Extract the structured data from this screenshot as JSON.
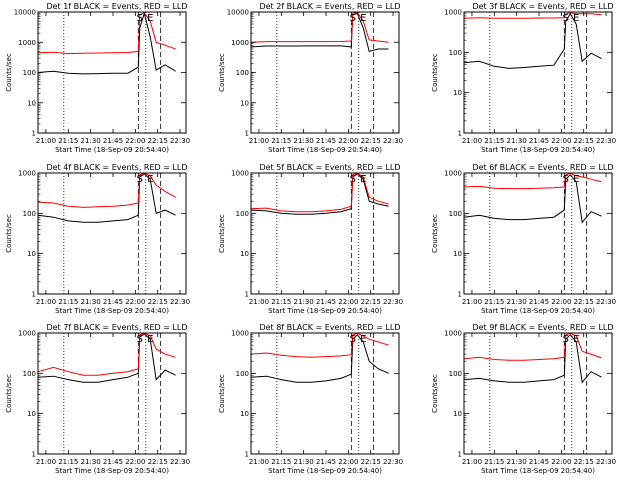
{
  "colors": {
    "events": "#000000",
    "lld": "#ff0000",
    "background": "#ffffff"
  },
  "chart_data": [
    {
      "type": "line",
      "title": "Det 1f BLACK = Events, RED = LLD",
      "xlabel": "Start Time (18-Sep-09 20:54:40)",
      "ylabel": "Counts/sec",
      "yscale": "log",
      "xlim": [
        "20:54:40",
        "22:34:00"
      ],
      "ylim": [
        1,
        10000
      ],
      "xticks": [
        "21:00",
        "21:15",
        "21:30",
        "21:45",
        "22:00",
        "22:15",
        "22:30"
      ],
      "yticks": [
        "1",
        "10",
        "100",
        "1000",
        "10000"
      ],
      "markers": {
        "S": "22:03",
        "E": "22:10"
      },
      "dotted_lines": [
        "21:12",
        "22:07"
      ],
      "dashed_lines": [
        "22:02",
        "22:17"
      ],
      "x": [
        "20:54:40",
        "21:05",
        "21:15",
        "21:25",
        "21:35",
        "21:45",
        "21:55",
        "22:02",
        "22:03",
        "22:06",
        "22:10",
        "22:14",
        "22:20",
        "22:27"
      ],
      "series": [
        {
          "name": "Events",
          "values": [
            100,
            110,
            95,
            90,
            92,
            95,
            95,
            150,
            3000,
            9000,
            1500,
            120,
            180,
            110
          ]
        },
        {
          "name": "LLD",
          "values": [
            450,
            470,
            420,
            430,
            440,
            450,
            460,
            500,
            8000,
            9500,
            5000,
            1000,
            800,
            600
          ]
        }
      ]
    },
    {
      "type": "line",
      "title": "Det 2f BLACK = Events, RED = LLD",
      "xlabel": "Start Time (18-Sep-09 20:54:40)",
      "ylabel": "Counts/sec",
      "yscale": "log",
      "xlim": [
        "20:54:40",
        "22:34:00"
      ],
      "ylim": [
        1,
        10000
      ],
      "xticks": [
        "21:00",
        "21:15",
        "21:30",
        "21:45",
        "22:00",
        "22:15",
        "22:30"
      ],
      "yticks": [
        "1",
        "10",
        "100",
        "1000",
        "10000"
      ],
      "markers": {
        "S": "22:03",
        "E": "22:10"
      },
      "dotted_lines": [
        "21:12",
        "22:07"
      ],
      "dashed_lines": [
        "22:02",
        "22:17"
      ],
      "x": [
        "20:54:40",
        "21:05",
        "21:15",
        "21:25",
        "21:35",
        "21:45",
        "21:55",
        "22:02",
        "22:03",
        "22:06",
        "22:10",
        "22:14",
        "22:20",
        "22:27"
      ],
      "series": [
        {
          "name": "Events",
          "values": [
            700,
            750,
            750,
            750,
            760,
            760,
            760,
            700,
            8000,
            9000,
            3000,
            500,
            600,
            600
          ]
        },
        {
          "name": "LLD",
          "values": [
            1000,
            1050,
            1050,
            1050,
            1050,
            1050,
            1060,
            1100,
            9000,
            9800,
            5000,
            1200,
            1100,
            1000
          ]
        }
      ]
    },
    {
      "type": "line",
      "title": "Det 3f BLACK = Events, RED = LLD",
      "xlabel": "Start Time (18-Sep-09 20:54:40)",
      "ylabel": "Counts/sec",
      "yscale": "log",
      "xlim": [
        "20:54:40",
        "22:34:00"
      ],
      "ylim": [
        1,
        1000
      ],
      "xticks": [
        "21:00",
        "21:15",
        "21:30",
        "21:45",
        "22:00",
        "22:15",
        "22:30"
      ],
      "yticks": [
        "1",
        "10",
        "100",
        "1000"
      ],
      "markers": {
        "S": "22:03",
        "E": "22:10"
      },
      "dotted_lines": [
        "21:12",
        "22:07"
      ],
      "dashed_lines": [
        "22:02",
        "22:17"
      ],
      "x": [
        "20:54:40",
        "21:05",
        "21:15",
        "21:25",
        "21:35",
        "21:45",
        "21:55",
        "22:02",
        "22:03",
        "22:06",
        "22:10",
        "22:14",
        "22:20",
        "22:27"
      ],
      "series": [
        {
          "name": "Events",
          "values": [
            55,
            60,
            45,
            40,
            42,
            45,
            48,
            120,
            600,
            900,
            500,
            60,
            95,
            70
          ]
        },
        {
          "name": "LLD",
          "values": [
            700,
            720,
            700,
            700,
            700,
            710,
            710,
            720,
            900,
            950,
            900,
            900,
            900,
            850
          ]
        }
      ]
    },
    {
      "type": "line",
      "title": "Det 4f BLACK = Events, RED = LLD",
      "xlabel": "Start Time (18-Sep-09 20:54:40)",
      "ylabel": "Counts/sec",
      "yscale": "log",
      "xlim": [
        "20:54:40",
        "22:34:00"
      ],
      "ylim": [
        1,
        1000
      ],
      "xticks": [
        "21:00",
        "21:15",
        "21:30",
        "21:45",
        "22:00",
        "22:15",
        "22:30"
      ],
      "yticks": [
        "1",
        "10",
        "100",
        "1000"
      ],
      "markers": {
        "S": "22:03",
        "E": "22:10"
      },
      "dotted_lines": [
        "21:12",
        "22:07"
      ],
      "dashed_lines": [
        "22:02",
        "22:17"
      ],
      "x": [
        "20:54:40",
        "21:05",
        "21:15",
        "21:25",
        "21:35",
        "21:45",
        "21:55",
        "22:02",
        "22:03",
        "22:06",
        "22:10",
        "22:14",
        "22:20",
        "22:27"
      ],
      "series": [
        {
          "name": "Events",
          "values": [
            90,
            80,
            65,
            60,
            60,
            65,
            70,
            90,
            800,
            950,
            700,
            100,
            120,
            90
          ]
        },
        {
          "name": "LLD",
          "values": [
            190,
            180,
            150,
            140,
            145,
            150,
            160,
            180,
            900,
            980,
            850,
            500,
            350,
            250
          ]
        }
      ]
    },
    {
      "type": "line",
      "title": "Det 5f BLACK = Events, RED = LLD",
      "xlabel": "Start Time (18-Sep-09 20:54:40)",
      "ylabel": "Counts/sec",
      "yscale": "log",
      "xlim": [
        "20:54:40",
        "22:34:00"
      ],
      "ylim": [
        1,
        1000
      ],
      "xticks": [
        "21:00",
        "21:15",
        "21:30",
        "21:45",
        "22:00",
        "22:15",
        "22:30"
      ],
      "yticks": [
        "1",
        "10",
        "100",
        "1000"
      ],
      "markers": {
        "S": "22:03",
        "E": "22:10"
      },
      "dotted_lines": [
        "21:12",
        "22:07"
      ],
      "dashed_lines": [
        "22:02",
        "22:17"
      ],
      "x": [
        "20:54:40",
        "21:05",
        "21:15",
        "21:25",
        "21:35",
        "21:45",
        "21:55",
        "22:02",
        "22:03",
        "22:06",
        "22:10",
        "22:14",
        "22:20",
        "22:27"
      ],
      "series": [
        {
          "name": "Events",
          "values": [
            120,
            115,
            100,
            95,
            95,
            100,
            110,
            130,
            800,
            950,
            700,
            200,
            170,
            150
          ]
        },
        {
          "name": "LLD",
          "values": [
            130,
            135,
            115,
            110,
            110,
            115,
            125,
            150,
            900,
            980,
            800,
            250,
            200,
            170
          ]
        }
      ]
    },
    {
      "type": "line",
      "title": "Det 6f BLACK = Events, RED = LLD",
      "xlabel": "Start Time (18-Sep-09 20:54:40)",
      "ylabel": "Counts/sec",
      "yscale": "log",
      "xlim": [
        "20:54:40",
        "22:34:00"
      ],
      "ylim": [
        1,
        1000
      ],
      "xticks": [
        "21:00",
        "21:15",
        "21:30",
        "21:45",
        "22:00",
        "22:15",
        "22:30"
      ],
      "yticks": [
        "1",
        "10",
        "100",
        "1000"
      ],
      "markers": {
        "S": "22:03",
        "E": "22:10"
      },
      "dotted_lines": [
        "21:12",
        "22:07"
      ],
      "dashed_lines": [
        "22:02",
        "22:17"
      ],
      "x": [
        "20:54:40",
        "21:05",
        "21:15",
        "21:25",
        "21:35",
        "21:45",
        "21:55",
        "22:02",
        "22:03",
        "22:06",
        "22:10",
        "22:14",
        "22:20",
        "22:27"
      ],
      "series": [
        {
          "name": "Events",
          "values": [
            80,
            90,
            75,
            70,
            70,
            75,
            80,
            120,
            700,
            900,
            600,
            60,
            110,
            85
          ]
        },
        {
          "name": "LLD",
          "values": [
            450,
            470,
            420,
            410,
            410,
            420,
            430,
            450,
            900,
            980,
            850,
            800,
            700,
            600
          ]
        }
      ]
    },
    {
      "type": "line",
      "title": "Det 7f BLACK = Events, RED = LLD",
      "xlabel": "Start Time (18-Sep-09 20:54:40)",
      "ylabel": "Counts/sec",
      "yscale": "log",
      "xlim": [
        "20:54:40",
        "22:34:00"
      ],
      "ylim": [
        1,
        1000
      ],
      "xticks": [
        "21:00",
        "21:15",
        "21:30",
        "21:45",
        "22:00",
        "22:15",
        "22:30"
      ],
      "yticks": [
        "1",
        "10",
        "100",
        "1000"
      ],
      "markers": {
        "S": "22:03",
        "E": "22:10"
      },
      "dotted_lines": [
        "21:12",
        "22:07"
      ],
      "dashed_lines": [
        "22:02",
        "22:17"
      ],
      "x": [
        "20:54:40",
        "21:05",
        "21:15",
        "21:25",
        "21:35",
        "21:45",
        "21:55",
        "22:02",
        "22:03",
        "22:06",
        "22:10",
        "22:14",
        "22:20",
        "22:27"
      ],
      "series": [
        {
          "name": "Events",
          "values": [
            80,
            85,
            70,
            60,
            60,
            70,
            80,
            100,
            800,
            950,
            700,
            70,
            120,
            90
          ]
        },
        {
          "name": "LLD",
          "values": [
            110,
            140,
            110,
            90,
            90,
            100,
            110,
            130,
            900,
            980,
            850,
            400,
            300,
            250
          ]
        }
      ]
    },
    {
      "type": "line",
      "title": "Det 8f BLACK = Events, RED = LLD",
      "xlabel": "Start Time (18-Sep-09 20:54:40)",
      "ylabel": "Counts/sec",
      "yscale": "log",
      "xlim": [
        "20:54:40",
        "22:34:00"
      ],
      "ylim": [
        1,
        1000
      ],
      "xticks": [
        "21:00",
        "21:15",
        "21:30",
        "21:45",
        "22:00",
        "22:15",
        "22:30"
      ],
      "yticks": [
        "1",
        "10",
        "100",
        "1000"
      ],
      "markers": {
        "S": "22:03",
        "E": "22:10"
      },
      "dotted_lines": [
        "21:12",
        "22:07"
      ],
      "dashed_lines": [
        "22:02",
        "22:17"
      ],
      "x": [
        "20:54:40",
        "21:05",
        "21:15",
        "21:25",
        "21:35",
        "21:45",
        "21:55",
        "22:02",
        "22:03",
        "22:06",
        "22:10",
        "22:14",
        "22:20",
        "22:27"
      ],
      "series": [
        {
          "name": "Events",
          "values": [
            80,
            85,
            70,
            60,
            60,
            65,
            75,
            95,
            700,
            900,
            600,
            200,
            130,
            100
          ]
        },
        {
          "name": "LLD",
          "values": [
            300,
            320,
            280,
            260,
            250,
            260,
            270,
            290,
            900,
            980,
            850,
            700,
            600,
            500
          ]
        }
      ]
    },
    {
      "type": "line",
      "title": "Det 9f BLACK = Events, RED = LLD",
      "xlabel": "Start Time (18-Sep-09 20:54:40)",
      "ylabel": "Counts/sec",
      "yscale": "log",
      "xlim": [
        "20:54:40",
        "22:34:00"
      ],
      "ylim": [
        1,
        1000
      ],
      "xticks": [
        "21:00",
        "21:15",
        "21:30",
        "21:45",
        "22:00",
        "22:15",
        "22:30"
      ],
      "yticks": [
        "1",
        "10",
        "100",
        "1000"
      ],
      "markers": {
        "S": "22:03",
        "E": "22:10"
      },
      "dotted_lines": [
        "21:12",
        "22:07"
      ],
      "dashed_lines": [
        "22:02",
        "22:17"
      ],
      "x": [
        "20:54:40",
        "21:05",
        "21:15",
        "21:25",
        "21:35",
        "21:45",
        "21:55",
        "22:02",
        "22:03",
        "22:06",
        "22:10",
        "22:14",
        "22:20",
        "22:27"
      ],
      "series": [
        {
          "name": "Events",
          "values": [
            70,
            75,
            65,
            60,
            60,
            65,
            70,
            90,
            700,
            900,
            600,
            60,
            110,
            80
          ]
        },
        {
          "name": "LLD",
          "values": [
            230,
            250,
            220,
            210,
            210,
            220,
            230,
            250,
            900,
            980,
            850,
            350,
            300,
            240
          ]
        }
      ]
    }
  ]
}
